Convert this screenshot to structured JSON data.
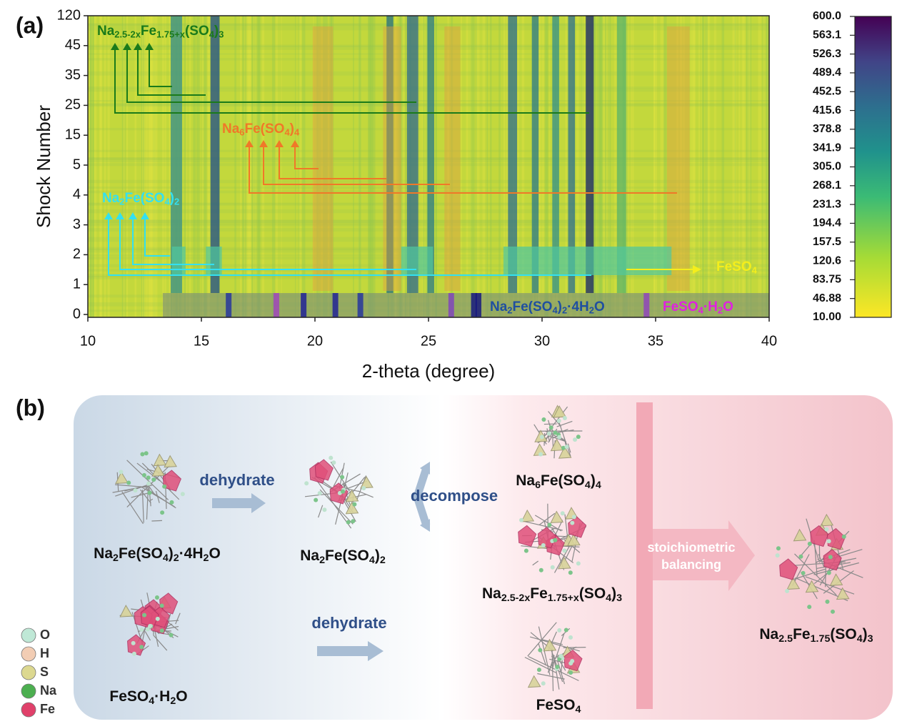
{
  "panel_a": {
    "label": "(a)",
    "xlabel": "2-theta (degree)",
    "ylabel": "Shock Number",
    "xlim": [
      10,
      40
    ],
    "xticks": [
      10,
      15,
      20,
      25,
      30,
      35,
      40
    ],
    "yticks": [
      0,
      1,
      2,
      3,
      4,
      5,
      15,
      25,
      35,
      45,
      120
    ],
    "colorbar": {
      "lim": [
        10,
        600
      ],
      "ticks": [
        {
          "value": 600,
          "label": "600.0"
        },
        563.1,
        526.3,
        489.4,
        452.5,
        415.6,
        378.8,
        341.9,
        {
          "value": 305,
          "label": "305.0"
        },
        268.1,
        231.3,
        194.4,
        157.5,
        120.6,
        83.75,
        46.88,
        {
          "value": 10,
          "label": "10.00"
        }
      ]
    },
    "annotations": [
      {
        "parts": [
          "Na",
          "2.5-2x",
          "Fe",
          "1.75+x",
          "(SO",
          "4",
          ")",
          "3"
        ],
        "color": "#1a7a1a"
      },
      {
        "parts": [
          "Na",
          "6",
          "Fe(SO",
          "4",
          ")",
          "4"
        ],
        "color": "#f07828"
      },
      {
        "parts": [
          "Na",
          "2",
          "Fe(SO",
          "4",
          ")",
          "2"
        ],
        "color": "#33e0f0"
      },
      {
        "parts": [
          "FeSO",
          "4"
        ],
        "color": "#f4ee1c"
      },
      {
        "parts": [
          "Na",
          "2",
          "Fe(SO",
          "4",
          ")",
          "2",
          "·4H",
          "2",
          "O"
        ],
        "color": "#1f4fa0"
      },
      {
        "parts": [
          "FeSO",
          "4",
          "·H",
          "2",
          "O"
        ],
        "color": "#e020e0"
      }
    ]
  },
  "panel_b": {
    "label": "(b)",
    "species": [
      {
        "parts": [
          "Na",
          "2",
          "Fe(SO",
          "4",
          ")",
          "2",
          "·4H",
          "2",
          "O"
        ]
      },
      {
        "parts": [
          "Na",
          "2",
          "Fe(SO",
          "4",
          ")",
          "2"
        ]
      },
      {
        "parts": [
          "FeSO",
          "4",
          "·H",
          "2",
          "O"
        ]
      },
      {
        "parts": [
          "Na",
          "6",
          "Fe(SO",
          "4",
          ")",
          "4"
        ]
      },
      {
        "parts": [
          "Na",
          "2.5-2x",
          "Fe",
          "1.75+x",
          "(SO",
          "4",
          ")",
          "3"
        ]
      },
      {
        "parts": [
          "FeSO",
          "4"
        ]
      },
      {
        "parts": [
          "Na",
          "2.5",
          "Fe",
          "1.75",
          "(SO",
          "4",
          ")",
          "3"
        ]
      }
    ],
    "steps": [
      "dehydrate",
      "dehydrate",
      "decompose"
    ],
    "balancing": [
      "stoichiometric",
      "balancing"
    ],
    "legend": [
      {
        "name": "O",
        "color": "#bfe8d6"
      },
      {
        "name": "H",
        "color": "#f2cdb4"
      },
      {
        "name": "S",
        "color": "#dcd890"
      },
      {
        "name": "Na",
        "color": "#4caf50"
      },
      {
        "name": "Fe",
        "color": "#e0406a"
      }
    ]
  }
}
